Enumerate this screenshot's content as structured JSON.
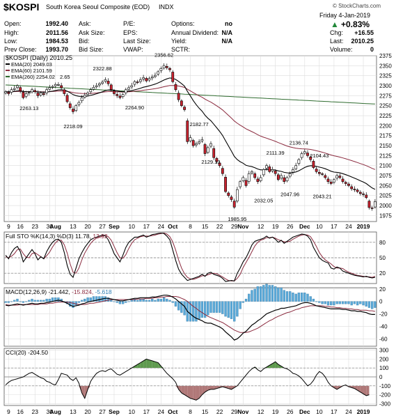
{
  "header": {
    "symbol": "$KOSPI",
    "name": "South Korea Seoul Composite (EOD)",
    "tag": "INDX",
    "watermark": "© StockCharts.com",
    "date": "Friday   4-Jan-2019",
    "change_pct": "+0.83%",
    "col1": [
      {
        "label": "Open:",
        "value": "1992.40"
      },
      {
        "label": "High:",
        "value": "2011.56"
      },
      {
        "label": "Low:",
        "value": "1984.53"
      },
      {
        "label": "Prev Close:",
        "value": "1993.70"
      }
    ],
    "col2": [
      "Ask:",
      "Ask Size:",
      "Bid:",
      "Bid Size:"
    ],
    "col3": [
      "P/E:",
      "EPS:",
      "Last Size:",
      "VWAP:"
    ],
    "col4": [
      {
        "label": "Options:",
        "value": "no"
      },
      {
        "label": "Annual Dividend:",
        "value": "N/A"
      },
      {
        "label": "Yield:",
        "value": "N/A"
      },
      {
        "label": "SCTR:",
        "value": ""
      }
    ],
    "col5": [
      {
        "label": "Chg:",
        "value": "+16.55"
      },
      {
        "label": "Last:",
        "value": "2010.25"
      },
      {
        "label": "Volume:",
        "value": "0"
      }
    ]
  },
  "chart_data": [
    {
      "type": "candlestick",
      "title": "$KOSPI (Daily) 2010.25",
      "legend": [
        {
          "label": "EMA(20) 2049.03",
          "color": "#000000"
        },
        {
          "label": "EMA(60) 2101.59",
          "color": "#8b2a3e"
        },
        {
          "label": "EMA(260) 2254.02",
          "color": "#2e6b2e"
        }
      ],
      "legend_overlap": "2.65",
      "ylim": [
        1960,
        2375
      ],
      "y_ticks": [
        1975,
        2000,
        2025,
        2050,
        2075,
        2100,
        2125,
        2150,
        2175,
        2200,
        2225,
        2250,
        2275,
        2300,
        2325,
        2350,
        2375
      ],
      "x_labels": [
        {
          "t": 1,
          "label": "9"
        },
        {
          "t": 5,
          "label": "16"
        },
        {
          "t": 10,
          "label": "23"
        },
        {
          "t": 15,
          "label": "30"
        },
        {
          "t": 17,
          "label": "Aug"
        },
        {
          "t": 23,
          "label": "13"
        },
        {
          "t": 28,
          "label": "20"
        },
        {
          "t": 33,
          "label": "27"
        },
        {
          "t": 37,
          "label": "Sep"
        },
        {
          "t": 43,
          "label": "10"
        },
        {
          "t": 48,
          "label": "17"
        },
        {
          "t": 53,
          "label": "24"
        },
        {
          "t": 57,
          "label": "Oct"
        },
        {
          "t": 63,
          "label": "8"
        },
        {
          "t": 68,
          "label": "15"
        },
        {
          "t": 73,
          "label": "22"
        },
        {
          "t": 78,
          "label": "29"
        },
        {
          "t": 81,
          "label": "Nov"
        },
        {
          "t": 87,
          "label": "12"
        },
        {
          "t": 92,
          "label": "19"
        },
        {
          "t": 97,
          "label": "26"
        },
        {
          "t": 102,
          "label": "Dec"
        },
        {
          "t": 107,
          "label": "10"
        },
        {
          "t": 112,
          "label": "17"
        },
        {
          "t": 117,
          "label": "24"
        },
        {
          "t": 122,
          "label": "2019"
        }
      ],
      "bold_x_labels": [
        "Aug",
        "Sep",
        "Oct",
        "Nov",
        "Dec",
        "2019"
      ],
      "close": [
        2285,
        2280,
        2290,
        2293,
        2300,
        2287,
        2270,
        2280,
        2283,
        2290,
        2285,
        2275,
        2282,
        2278,
        2290,
        2295,
        2298,
        2303,
        2303,
        2295,
        2280,
        2260,
        2245,
        2235,
        2250,
        2258,
        2270,
        2276,
        2282,
        2290,
        2296,
        2300,
        2305,
        2309,
        2315,
        2305,
        2290,
        2280,
        2275,
        2270,
        2278,
        2290,
        2295,
        2300,
        2310,
        2308,
        2315,
        2320,
        2312,
        2318,
        2322,
        2326,
        2335,
        2343,
        2350,
        2345,
        2340,
        2310,
        2290,
        2265,
        2250,
        2240,
        2160,
        2170,
        2150,
        2155,
        2160,
        2165,
        2130,
        2145,
        2155,
        2120,
        2110,
        2100,
        2080,
        2035,
        2025,
        2015,
        1996,
        2040,
        2060,
        2070,
        2050,
        2080,
        2085,
        2070,
        2060,
        2070,
        2090,
        2100,
        2085,
        2090,
        2080,
        2065,
        2075,
        2060,
        2070,
        2080,
        2090,
        2100,
        2115,
        2130,
        2135,
        2125,
        2115,
        2095,
        2085,
        2080,
        2078,
        2070,
        2060,
        2055,
        2065,
        2075,
        2070,
        2060,
        2055,
        2050,
        2042,
        2040,
        2035,
        2030,
        2028,
        2020,
        1995,
        1993,
        2010
      ],
      "annotations": [
        {
          "t": 8,
          "price": 2263.13,
          "label": "2263.13",
          "pos": "below"
        },
        {
          "t": 23,
          "price": 2218.09,
          "label": "2218.09",
          "pos": "below"
        },
        {
          "t": 33,
          "price": 2322.88,
          "label": "2322.88",
          "pos": "above"
        },
        {
          "t": 44,
          "price": 2264.9,
          "label": "2264.90",
          "pos": "below"
        },
        {
          "t": 54,
          "price": 2356.62,
          "label": "2356.62",
          "pos": "above"
        },
        {
          "t": 66,
          "price": 2182.77,
          "label": "2182.77",
          "pos": "above"
        },
        {
          "t": 70,
          "price": 2129.13,
          "label": "2129.13",
          "pos": "below"
        },
        {
          "t": 79,
          "price": 1985.95,
          "label": "1985.95",
          "pos": "below"
        },
        {
          "t": 88,
          "price": 2032.05,
          "label": "2032.05",
          "pos": "below"
        },
        {
          "t": 92,
          "price": 2111.39,
          "label": "2111.39",
          "pos": "above"
        },
        {
          "t": 97,
          "price": 2047.96,
          "label": "2047.96",
          "pos": "below"
        },
        {
          "t": 100,
          "price": 2136.74,
          "label": "2136.74",
          "pos": "above"
        },
        {
          "t": 107,
          "price": 2104.43,
          "label": "2104.43",
          "pos": "above"
        },
        {
          "t": 108,
          "price": 2043.21,
          "label": "2043.21",
          "pos": "below"
        }
      ]
    },
    {
      "type": "line",
      "title": "Full STO %K(14,3) %D(3)",
      "k_value": "11.78",
      "d_value": "13.92",
      "ylim": [
        0,
        100
      ],
      "y_ticks": [
        20,
        50,
        80
      ],
      "ref_lines": [
        20,
        50,
        80
      ],
      "k": [
        55,
        48,
        60,
        68,
        72,
        62,
        42,
        50,
        58,
        66,
        58,
        46,
        52,
        48,
        62,
        72,
        80,
        85,
        86,
        80,
        60,
        35,
        18,
        12,
        30,
        48,
        60,
        70,
        78,
        85,
        88,
        90,
        92,
        94,
        93,
        85,
        72,
        58,
        50,
        42,
        55,
        70,
        80,
        85,
        90,
        90,
        92,
        94,
        90,
        92,
        95,
        96,
        97,
        98,
        97,
        92,
        85,
        65,
        45,
        28,
        18,
        12,
        6,
        8,
        10,
        12,
        14,
        18,
        14,
        20,
        22,
        18,
        16,
        14,
        10,
        4,
        5,
        6,
        5,
        20,
        30,
        42,
        50,
        62,
        75,
        82,
        84,
        86,
        88,
        92,
        88,
        90,
        86,
        80,
        84,
        78,
        82,
        86,
        90,
        92,
        94,
        96,
        95,
        92,
        85,
        70,
        60,
        50,
        45,
        42,
        40,
        30,
        28,
        32,
        30,
        24,
        22,
        20,
        18,
        16,
        15,
        14,
        13,
        14,
        12,
        11,
        12
      ],
      "d": [
        52,
        50,
        53,
        58,
        66,
        67,
        58,
        51,
        50,
        58,
        60,
        56,
        52,
        48,
        54,
        61,
        71,
        79,
        84,
        84,
        75,
        59,
        38,
        22,
        20,
        30,
        46,
        59,
        69,
        78,
        84,
        88,
        90,
        92,
        93,
        91,
        84,
        72,
        60,
        50,
        49,
        56,
        68,
        78,
        85,
        88,
        91,
        92,
        92,
        92,
        93,
        94,
        96,
        97,
        98,
        96,
        91,
        81,
        65,
        46,
        30,
        19,
        12,
        9,
        8,
        10,
        12,
        15,
        15,
        17,
        19,
        20,
        19,
        16,
        13,
        9,
        6,
        5,
        5,
        10,
        18,
        31,
        41,
        51,
        62,
        73,
        80,
        84,
        86,
        89,
        89,
        90,
        88,
        85,
        83,
        81,
        81,
        82,
        86,
        89,
        92,
        94,
        95,
        94,
        91,
        82,
        72,
        60,
        52,
        46,
        42,
        38,
        33,
        30,
        30,
        29,
        25,
        22,
        20,
        18,
        16,
        15,
        14,
        13,
        13,
        12,
        14
      ]
    },
    {
      "type": "line",
      "title": "MACD(12,26,9)",
      "macd_value": "-21.442",
      "signal_value": "-15.824",
      "hist_value": "-5.618",
      "ylim": [
        -72,
        22
      ],
      "y_ticks": [
        -60,
        -40,
        -20,
        0,
        20
      ],
      "macd": [
        -6,
        -7,
        -6,
        -5,
        -4,
        -5,
        -6,
        -5,
        -4,
        -3,
        -4,
        -4,
        -3,
        -3,
        -2,
        -1,
        0,
        1,
        2,
        1,
        -1,
        -3,
        -6,
        -8,
        -7,
        -6,
        -4,
        -3,
        -1,
        0,
        1,
        2,
        3,
        4,
        5,
        5,
        4,
        3,
        2,
        1,
        1,
        2,
        3,
        4,
        5,
        5,
        6,
        6,
        6,
        6,
        7,
        7,
        8,
        9,
        10,
        10,
        9,
        7,
        4,
        0,
        -4,
        -8,
        -16,
        -20,
        -24,
        -27,
        -29,
        -31,
        -34,
        -35,
        -35,
        -37,
        -39,
        -41,
        -44,
        -49,
        -53,
        -57,
        -62,
        -60,
        -56,
        -51,
        -48,
        -43,
        -38,
        -35,
        -31,
        -28,
        -24,
        -20,
        -18,
        -16,
        -14,
        -13,
        -11,
        -11,
        -10,
        -9,
        -8,
        -7,
        -5,
        -3,
        -2,
        -2,
        -3,
        -5,
        -7,
        -8,
        -9,
        -10,
        -11,
        -12,
        -12,
        -12,
        -12,
        -13,
        -13,
        -14,
        -15,
        -15,
        -16,
        -16,
        -17,
        -18,
        -20,
        -21,
        -21
      ],
      "signal": [
        -5,
        -6,
        -6,
        -6,
        -6,
        -5,
        -5,
        -5,
        -5,
        -5,
        -5,
        -5,
        -4,
        -4,
        -4,
        -3,
        -3,
        -2,
        -1,
        -1,
        -1,
        -1,
        -2,
        -3,
        -4,
        -5,
        -5,
        -5,
        -4,
        -3,
        -3,
        -2,
        -1,
        0,
        1,
        2,
        3,
        3,
        3,
        3,
        3,
        3,
        3,
        3,
        3,
        4,
        4,
        4,
        5,
        5,
        5,
        6,
        6,
        7,
        7,
        8,
        8,
        8,
        8,
        7,
        5,
        3,
        0,
        -4,
        -8,
        -11,
        -15,
        -18,
        -21,
        -24,
        -26,
        -28,
        -30,
        -32,
        -34,
        -37,
        -40,
        -43,
        -46,
        -48,
        -50,
        -50,
        -50,
        -49,
        -47,
        -45,
        -43,
        -40,
        -37,
        -34,
        -31,
        -29,
        -26,
        -24,
        -22,
        -20,
        -18,
        -17,
        -15,
        -13,
        -12,
        -10,
        -9,
        -8,
        -7,
        -7,
        -7,
        -7,
        -7,
        -8,
        -8,
        -9,
        -9,
        -10,
        -10,
        -11,
        -11,
        -12,
        -12,
        -13,
        -13,
        -14,
        -14,
        -14,
        -15,
        -15,
        -16
      ]
    },
    {
      "type": "line",
      "title": "CCI(20)",
      "cci_value": "-204.50",
      "ylim": [
        -320,
        320
      ],
      "y_ticks": [
        -300,
        -200,
        -100,
        0,
        100,
        200,
        300
      ],
      "ref_lines": [
        -100,
        0,
        100
      ],
      "cci": [
        -90,
        -60,
        -40,
        -30,
        -20,
        -10,
        0,
        20,
        40,
        50,
        30,
        10,
        -10,
        -20,
        -50,
        -60,
        -80,
        -90,
        -30,
        40,
        30,
        20,
        -20,
        -40,
        -10,
        -70,
        -180,
        -240,
        -140,
        -50,
        0,
        40,
        60,
        70,
        60,
        80,
        90,
        60,
        30,
        20,
        40,
        60,
        80,
        100,
        120,
        140,
        160,
        180,
        200,
        190,
        180,
        170,
        160,
        120,
        80,
        40,
        10,
        -20,
        -60,
        -140,
        -180,
        -200,
        -220,
        -240,
        -250,
        -260,
        -240,
        -200,
        -170,
        -150,
        -140,
        -140,
        -130,
        -120,
        -110,
        -120,
        -130,
        -140,
        -120,
        -100,
        -60,
        -20,
        20,
        60,
        90,
        110,
        80,
        60,
        90,
        110,
        130,
        150,
        170,
        140,
        120,
        100,
        90,
        70,
        40,
        30,
        10,
        -20,
        -60,
        -100,
        -80,
        -40,
        20,
        60,
        40,
        0,
        -60,
        -100,
        -120,
        -140,
        -120,
        -100,
        -90,
        -110,
        -120,
        -130,
        -150,
        -170,
        -190,
        -210,
        -200
      ]
    }
  ]
}
